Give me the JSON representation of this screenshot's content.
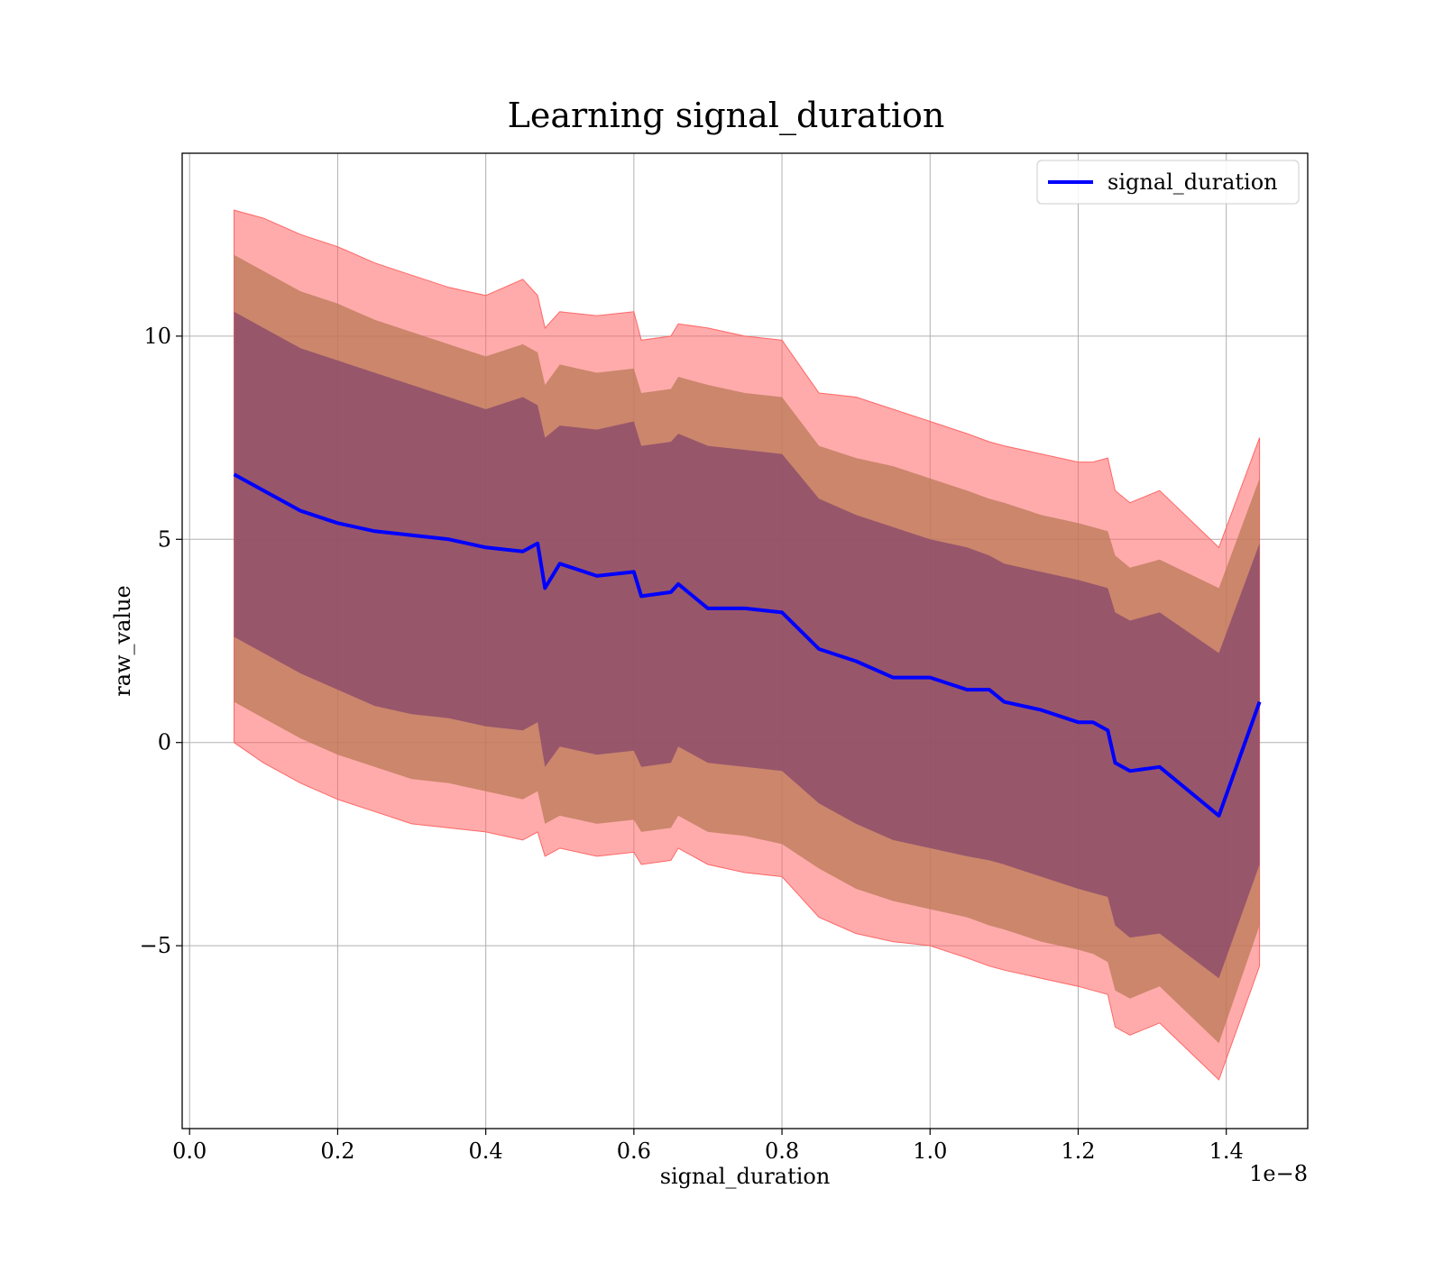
{
  "chart_data": {
    "type": "line",
    "title": "Learning signal_duration",
    "xlabel": "signal_duration",
    "ylabel": "raw_value",
    "x_offset_label": "1e−8",
    "xlim": [
      -0.01,
      1.51
    ],
    "ylim": [
      -9.5,
      14.5
    ],
    "x_ticks": [
      0.0,
      0.2,
      0.4,
      0.6,
      0.8,
      1.0,
      1.2,
      1.4
    ],
    "x_tick_labels": [
      "0.0",
      "0.2",
      "0.4",
      "0.6",
      "0.8",
      "1.0",
      "1.2",
      "1.4"
    ],
    "y_ticks": [
      -5,
      0,
      5,
      10
    ],
    "y_tick_labels": [
      "−5",
      "0",
      "5",
      "10"
    ],
    "grid": true,
    "legend_position": "top-right",
    "colors": {
      "line": "#0000ff",
      "band_3sigma": "#ff6666",
      "band_2sigma": "#b97a57",
      "band_1sigma": "#8b4a6b"
    },
    "series": [
      {
        "name": "signal_duration",
        "x": [
          0.06,
          0.1,
          0.15,
          0.2,
          0.25,
          0.3,
          0.35,
          0.4,
          0.45,
          0.47,
          0.48,
          0.5,
          0.55,
          0.6,
          0.61,
          0.65,
          0.66,
          0.7,
          0.75,
          0.8,
          0.85,
          0.9,
          0.95,
          1.0,
          1.05,
          1.08,
          1.1,
          1.15,
          1.2,
          1.22,
          1.24,
          1.25,
          1.27,
          1.31,
          1.39,
          1.445
        ],
        "y": [
          6.6,
          6.2,
          5.7,
          5.4,
          5.2,
          5.1,
          5.0,
          4.8,
          4.7,
          4.9,
          3.8,
          4.4,
          4.1,
          4.2,
          3.6,
          3.7,
          3.9,
          3.3,
          3.3,
          3.2,
          2.3,
          2.0,
          1.6,
          1.6,
          1.3,
          1.3,
          1.0,
          0.8,
          0.5,
          0.5,
          0.3,
          -0.5,
          -0.7,
          -0.6,
          -1.8,
          1.0
        ],
        "upper3": [
          13.1,
          12.9,
          12.5,
          12.2,
          11.8,
          11.5,
          11.2,
          11.0,
          11.4,
          11.0,
          10.2,
          10.6,
          10.5,
          10.6,
          9.9,
          10.0,
          10.3,
          10.2,
          10.0,
          9.9,
          8.6,
          8.5,
          8.2,
          7.9,
          7.6,
          7.4,
          7.3,
          7.1,
          6.9,
          6.9,
          7.0,
          6.2,
          5.9,
          6.2,
          4.8,
          7.5
        ],
        "upper2": [
          12.0,
          11.6,
          11.1,
          10.8,
          10.4,
          10.1,
          9.8,
          9.5,
          9.8,
          9.6,
          8.8,
          9.3,
          9.1,
          9.2,
          8.6,
          8.7,
          9.0,
          8.8,
          8.6,
          8.5,
          7.3,
          7.0,
          6.8,
          6.5,
          6.2,
          6.0,
          5.9,
          5.6,
          5.4,
          5.3,
          5.2,
          4.6,
          4.3,
          4.5,
          3.8,
          6.5
        ],
        "upper1": [
          10.6,
          10.2,
          9.7,
          9.4,
          9.1,
          8.8,
          8.5,
          8.2,
          8.5,
          8.3,
          7.5,
          7.8,
          7.7,
          7.9,
          7.3,
          7.4,
          7.6,
          7.3,
          7.2,
          7.1,
          6.0,
          5.6,
          5.3,
          5.0,
          4.8,
          4.6,
          4.4,
          4.2,
          4.0,
          3.9,
          3.8,
          3.2,
          3.0,
          3.2,
          2.2,
          4.9
        ],
        "lower1": [
          2.6,
          2.2,
          1.7,
          1.3,
          0.9,
          0.7,
          0.6,
          0.4,
          0.3,
          0.5,
          -0.6,
          -0.1,
          -0.3,
          -0.2,
          -0.6,
          -0.5,
          -0.1,
          -0.5,
          -0.6,
          -0.7,
          -1.5,
          -2.0,
          -2.4,
          -2.6,
          -2.8,
          -2.9,
          -3.0,
          -3.3,
          -3.6,
          -3.7,
          -3.8,
          -4.5,
          -4.8,
          -4.7,
          -5.8,
          -3.0
        ],
        "lower2": [
          1.0,
          0.6,
          0.1,
          -0.3,
          -0.6,
          -0.9,
          -1.0,
          -1.2,
          -1.4,
          -1.2,
          -2.0,
          -1.8,
          -2.0,
          -1.9,
          -2.2,
          -2.1,
          -1.8,
          -2.2,
          -2.3,
          -2.5,
          -3.1,
          -3.6,
          -3.9,
          -4.1,
          -4.3,
          -4.5,
          -4.6,
          -4.9,
          -5.1,
          -5.2,
          -5.4,
          -6.1,
          -6.3,
          -6.0,
          -7.4,
          -4.5
        ],
        "lower3": [
          0.0,
          -0.5,
          -1.0,
          -1.4,
          -1.7,
          -2.0,
          -2.1,
          -2.2,
          -2.4,
          -2.2,
          -2.8,
          -2.6,
          -2.8,
          -2.7,
          -3.0,
          -2.9,
          -2.6,
          -3.0,
          -3.2,
          -3.3,
          -4.3,
          -4.7,
          -4.9,
          -5.0,
          -5.3,
          -5.5,
          -5.6,
          -5.8,
          -6.0,
          -6.1,
          -6.2,
          -7.0,
          -7.2,
          -6.9,
          -8.3,
          -5.5
        ]
      }
    ]
  }
}
